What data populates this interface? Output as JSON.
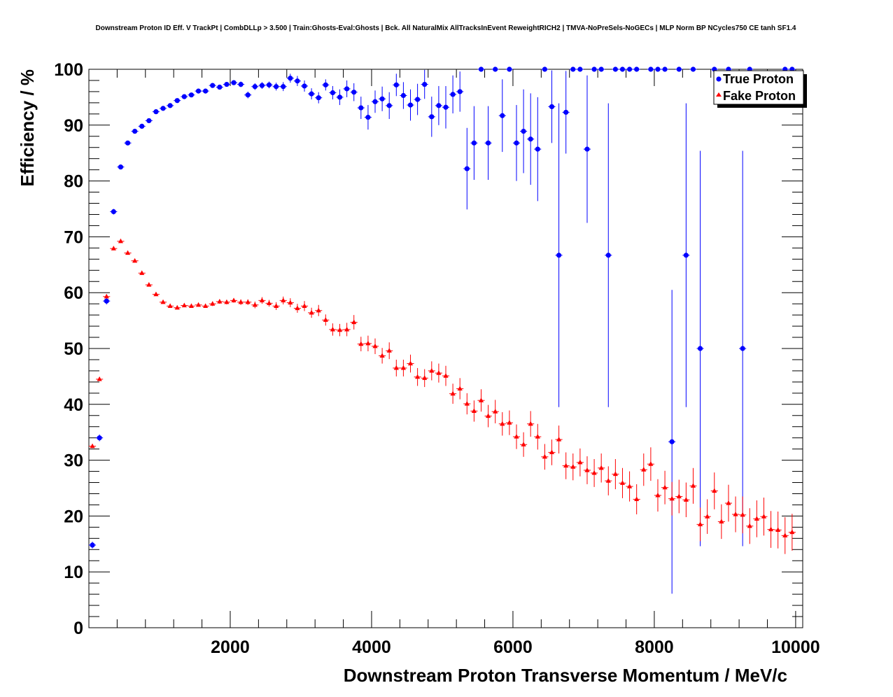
{
  "chart_data": {
    "type": "scatter",
    "title": "Downstream Proton ID Eff. V TrackPt | CombDLLp > 3.500 | Train:Ghosts-Eval:Ghosts | Bck. All NaturalMix AllTracksInEvent ReweightRICH2 | TMVA-NoPreSels-NoGECs | MLP Norm BP NCycles750 CE tanh SF1.4",
    "xlabel": "Downstream Proton Transverse Momentum / MeV/c",
    "ylabel": "Efficiency / %",
    "xlim": [
      0,
      10100
    ],
    "ylim": [
      0,
      100
    ],
    "x_ticks": [
      2000,
      4000,
      6000,
      8000,
      10000
    ],
    "y_ticks": [
      0,
      10,
      20,
      30,
      40,
      50,
      60,
      70,
      80,
      90,
      100
    ],
    "x_bin_halfwidth": 50,
    "grid": false,
    "legend_position": "top-right",
    "series": [
      {
        "name": "True Proton",
        "color": "#0000ff",
        "marker": "circle",
        "points": [
          [
            50,
            14.8,
            0.6
          ],
          [
            150,
            34.0,
            0.6
          ],
          [
            250,
            58.5,
            0.6
          ],
          [
            350,
            74.5,
            0.5
          ],
          [
            450,
            82.5,
            0.4
          ],
          [
            550,
            86.8,
            0.4
          ],
          [
            650,
            88.9,
            0.4
          ],
          [
            750,
            89.8,
            0.4
          ],
          [
            850,
            90.8,
            0.4
          ],
          [
            950,
            92.4,
            0.4
          ],
          [
            1050,
            93.0,
            0.4
          ],
          [
            1150,
            93.5,
            0.4
          ],
          [
            1250,
            94.4,
            0.4
          ],
          [
            1350,
            95.1,
            0.4
          ],
          [
            1450,
            95.4,
            0.4
          ],
          [
            1550,
            96.1,
            0.4
          ],
          [
            1650,
            96.1,
            0.4
          ],
          [
            1750,
            97.1,
            0.4
          ],
          [
            1850,
            96.8,
            0.4
          ],
          [
            1950,
            97.3,
            0.4
          ],
          [
            2050,
            97.6,
            0.4
          ],
          [
            2150,
            97.3,
            0.5
          ],
          [
            2250,
            95.4,
            0.6
          ],
          [
            2350,
            96.9,
            0.6
          ],
          [
            2450,
            97.1,
            0.6
          ],
          [
            2550,
            97.2,
            0.6
          ],
          [
            2650,
            96.9,
            0.7
          ],
          [
            2750,
            96.9,
            0.8
          ],
          [
            2850,
            98.4,
            0.8
          ],
          [
            2950,
            97.9,
            0.9
          ],
          [
            3050,
            97.0,
            1.0
          ],
          [
            3150,
            95.6,
            1.0
          ],
          [
            3250,
            94.9,
            1.0
          ],
          [
            3350,
            97.2,
            1.0
          ],
          [
            3450,
            95.8,
            1.2
          ],
          [
            3550,
            95.0,
            1.4
          ],
          [
            3650,
            96.5,
            1.5
          ],
          [
            3750,
            95.9,
            1.6
          ],
          [
            3850,
            93.1,
            2.0
          ],
          [
            3950,
            91.4,
            2.2
          ],
          [
            4050,
            94.2,
            2.0
          ],
          [
            4150,
            94.7,
            2.2
          ],
          [
            4250,
            93.5,
            2.4
          ],
          [
            4350,
            97.2,
            2.0
          ],
          [
            4450,
            95.3,
            2.4
          ],
          [
            4550,
            93.6,
            2.8
          ],
          [
            4650,
            94.6,
            2.8
          ],
          [
            4750,
            97.3,
            2.6
          ],
          [
            4850,
            91.5,
            3.6
          ],
          [
            4950,
            93.5,
            3.5
          ],
          [
            5050,
            93.2,
            3.8
          ],
          [
            5150,
            95.5,
            3.4
          ],
          [
            5250,
            96.0,
            3.6
          ],
          [
            5350,
            82.2,
            7.3
          ],
          [
            5450,
            86.8,
            6.6
          ],
          [
            5550,
            100.0,
            0.0
          ],
          [
            5650,
            86.8,
            6.6
          ],
          [
            5750,
            100.0,
            0.0
          ],
          [
            5850,
            91.7,
            6.5
          ],
          [
            5950,
            100.0,
            0.0
          ],
          [
            6050,
            86.8,
            6.8
          ],
          [
            6150,
            88.9,
            7.5
          ],
          [
            6250,
            87.5,
            8.2
          ],
          [
            6350,
            85.7,
            9.3
          ],
          [
            6450,
            100.0,
            0.0
          ],
          [
            6550,
            93.3,
            6.5
          ],
          [
            6650,
            66.7,
            27.2
          ],
          [
            6750,
            92.3,
            7.4
          ],
          [
            6850,
            100.0,
            0.0
          ],
          [
            6950,
            100.0,
            0.0
          ],
          [
            7050,
            85.7,
            13.2
          ],
          [
            7150,
            100.0,
            0.0
          ],
          [
            7250,
            100.0,
            0.0
          ],
          [
            7350,
            66.7,
            27.2
          ],
          [
            7450,
            100.0,
            0.0
          ],
          [
            7550,
            100.0,
            0.0
          ],
          [
            7650,
            100.0,
            0.0
          ],
          [
            7750,
            100.0,
            0.0
          ],
          [
            7950,
            100.0,
            0.0
          ],
          [
            8050,
            100.0,
            0.0
          ],
          [
            8150,
            100.0,
            0.0
          ],
          [
            8250,
            33.3,
            27.2
          ],
          [
            8350,
            100.0,
            0.0
          ],
          [
            8450,
            66.7,
            27.2
          ],
          [
            8550,
            100.0,
            0.0
          ],
          [
            8650,
            50.0,
            35.4
          ],
          [
            8850,
            100.0,
            0.0
          ],
          [
            9050,
            100.0,
            0.0
          ],
          [
            9250,
            50.0,
            35.4
          ],
          [
            9350,
            100.0,
            0.0
          ],
          [
            9850,
            100.0,
            0.0
          ],
          [
            9950,
            100.0,
            0.0
          ]
        ]
      },
      {
        "name": "Fake Proton",
        "color": "#ff0000",
        "marker": "triangle",
        "points": [
          [
            50,
            32.5,
            0.3
          ],
          [
            150,
            44.5,
            0.3
          ],
          [
            250,
            59.3,
            0.3
          ],
          [
            350,
            67.9,
            0.3
          ],
          [
            450,
            69.2,
            0.3
          ],
          [
            550,
            67.1,
            0.3
          ],
          [
            650,
            65.7,
            0.3
          ],
          [
            750,
            63.5,
            0.3
          ],
          [
            850,
            61.4,
            0.3
          ],
          [
            950,
            59.7,
            0.3
          ],
          [
            1050,
            58.3,
            0.3
          ],
          [
            1150,
            57.6,
            0.3
          ],
          [
            1250,
            57.3,
            0.3
          ],
          [
            1350,
            57.7,
            0.3
          ],
          [
            1450,
            57.6,
            0.3
          ],
          [
            1550,
            57.8,
            0.3
          ],
          [
            1650,
            57.6,
            0.3
          ],
          [
            1750,
            58.0,
            0.4
          ],
          [
            1850,
            58.4,
            0.4
          ],
          [
            1950,
            58.3,
            0.4
          ],
          [
            2050,
            58.6,
            0.4
          ],
          [
            2150,
            58.3,
            0.5
          ],
          [
            2250,
            58.3,
            0.5
          ],
          [
            2350,
            57.8,
            0.6
          ],
          [
            2450,
            58.6,
            0.6
          ],
          [
            2550,
            58.1,
            0.6
          ],
          [
            2650,
            57.6,
            0.7
          ],
          [
            2750,
            58.6,
            0.7
          ],
          [
            2850,
            58.2,
            0.8
          ],
          [
            2950,
            57.2,
            0.8
          ],
          [
            3050,
            57.6,
            0.9
          ],
          [
            3150,
            56.4,
            0.9
          ],
          [
            3250,
            56.8,
            1.0
          ],
          [
            3350,
            55.1,
            1.0
          ],
          [
            3450,
            53.4,
            1.1
          ],
          [
            3550,
            53.3,
            1.1
          ],
          [
            3650,
            53.4,
            1.2
          ],
          [
            3750,
            54.7,
            1.3
          ],
          [
            3850,
            50.8,
            1.3
          ],
          [
            3950,
            50.9,
            1.4
          ],
          [
            4050,
            50.4,
            1.4
          ],
          [
            4150,
            48.7,
            1.4
          ],
          [
            4250,
            49.6,
            1.5
          ],
          [
            4350,
            46.5,
            1.5
          ],
          [
            4450,
            46.5,
            1.5
          ],
          [
            4550,
            47.3,
            1.6
          ],
          [
            4650,
            44.9,
            1.6
          ],
          [
            4750,
            44.7,
            1.6
          ],
          [
            4850,
            46.0,
            1.7
          ],
          [
            4950,
            45.6,
            1.7
          ],
          [
            5050,
            45.1,
            1.8
          ],
          [
            5150,
            41.9,
            1.8
          ],
          [
            5250,
            42.8,
            1.9
          ],
          [
            5350,
            40.1,
            1.9
          ],
          [
            5450,
            38.8,
            1.9
          ],
          [
            5550,
            40.7,
            2.0
          ],
          [
            5650,
            37.9,
            2.0
          ],
          [
            5750,
            38.7,
            2.1
          ],
          [
            5850,
            36.5,
            2.1
          ],
          [
            5950,
            36.7,
            2.2
          ],
          [
            6050,
            34.2,
            2.2
          ],
          [
            6150,
            32.8,
            2.2
          ],
          [
            6250,
            36.5,
            2.3
          ],
          [
            6350,
            34.2,
            2.3
          ],
          [
            6450,
            30.6,
            2.3
          ],
          [
            6550,
            31.4,
            2.3
          ],
          [
            6650,
            33.7,
            2.5
          ],
          [
            6750,
            29.0,
            2.4
          ],
          [
            6850,
            28.8,
            2.4
          ],
          [
            6950,
            29.6,
            2.5
          ],
          [
            7050,
            28.2,
            2.5
          ],
          [
            7150,
            27.7,
            2.5
          ],
          [
            7250,
            28.6,
            2.6
          ],
          [
            7350,
            26.3,
            2.6
          ],
          [
            7450,
            27.5,
            2.7
          ],
          [
            7550,
            25.9,
            2.7
          ],
          [
            7650,
            25.3,
            2.7
          ],
          [
            7750,
            23.0,
            2.7
          ],
          [
            7850,
            28.3,
            2.9
          ],
          [
            7950,
            29.3,
            3.0
          ],
          [
            8050,
            23.7,
            2.9
          ],
          [
            8150,
            25.1,
            3.0
          ],
          [
            8250,
            23.1,
            3.0
          ],
          [
            8350,
            23.5,
            3.0
          ],
          [
            8450,
            22.9,
            3.1
          ],
          [
            8550,
            25.4,
            3.2
          ],
          [
            8650,
            18.5,
            3.0
          ],
          [
            8750,
            19.9,
            3.1
          ],
          [
            8850,
            24.5,
            3.3
          ],
          [
            8950,
            19.0,
            3.1
          ],
          [
            9050,
            22.3,
            3.3
          ],
          [
            9150,
            20.3,
            3.2
          ],
          [
            9250,
            20.2,
            3.3
          ],
          [
            9350,
            18.2,
            3.2
          ],
          [
            9450,
            19.5,
            3.3
          ],
          [
            9550,
            19.9,
            3.4
          ],
          [
            9650,
            17.6,
            3.3
          ],
          [
            9750,
            17.5,
            3.3
          ],
          [
            9850,
            16.5,
            3.3
          ],
          [
            9950,
            17.1,
            3.3
          ]
        ]
      }
    ]
  }
}
